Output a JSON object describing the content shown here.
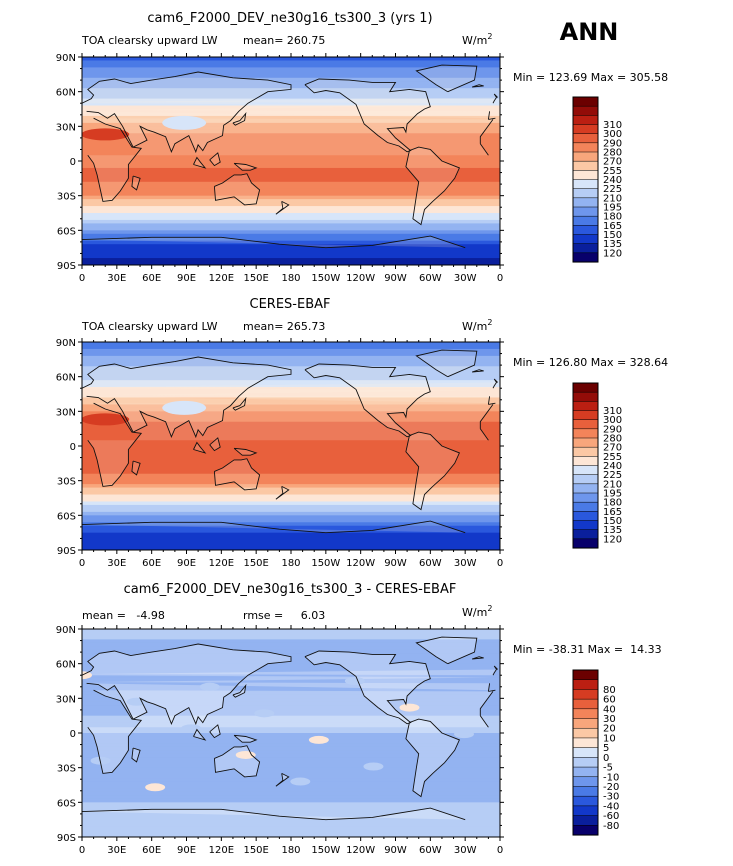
{
  "season": "ANN",
  "palettes": {
    "absolute": [
      "#08006b",
      "#0a1f9c",
      "#1238c9",
      "#2a58dd",
      "#4a7ae6",
      "#6e96ec",
      "#93b3f1",
      "#b6cdf5",
      "#d7e5f9",
      "#fde6d6",
      "#fbc8a5",
      "#f8a67c",
      "#f3845a",
      "#e8603c",
      "#d63c22",
      "#bb1f12",
      "#930c08",
      "#6b0000"
    ],
    "difference": [
      "#08006b",
      "#0a1f9c",
      "#1238c9",
      "#2a58dd",
      "#4a7ae6",
      "#6e96ec",
      "#93b3f1",
      "#b6cdf5",
      "#d7e5f9",
      "#fde6d6",
      "#fbc8a5",
      "#f8a67c",
      "#f3845a",
      "#e8603c",
      "#d63c22",
      "#bb1f12",
      "#6b0000"
    ]
  },
  "panels": [
    {
      "title": "cam6_F2000_DEV_ne30g16_ts300_3 (yrs 1)",
      "left_label": "TOA clearsky upward LW",
      "mean_text": "mean= 260.75",
      "rmse_text": "",
      "units_text": "W/m",
      "units_sup": "2",
      "minmax_text": "Min = 123.69 Max = 305.58"
    },
    {
      "title": "CERES-EBAF",
      "left_label": "TOA clearsky upward LW",
      "mean_text": "mean= 265.73",
      "rmse_text": "",
      "units_text": "W/m",
      "units_sup": "2",
      "minmax_text": "Min = 126.80 Max = 328.64"
    },
    {
      "title": "cam6_F2000_DEV_ne30g16_ts300_3 - CERES-EBAF",
      "left_label": "mean =   -4.98",
      "mean_text": "rmse =     6.03",
      "rmse_text": "",
      "units_text": "W/m",
      "units_sup": "2",
      "minmax_text": "Min = -38.31 Max =  14.33"
    }
  ],
  "chart_data": [
    {
      "type": "heatmap",
      "title": "cam6_F2000_DEV_ne30g16_ts300_3 (yrs 1)",
      "field": "TOA clearsky upward LW",
      "units": "W/m2",
      "mean": 260.75,
      "min": 123.69,
      "max": 305.58,
      "x_ticks": [
        "0",
        "30E",
        "60E",
        "90E",
        "120E",
        "150E",
        "180",
        "150W",
        "120W",
        "90W",
        "60W",
        "30W",
        "0"
      ],
      "y_ticks": [
        "90N",
        "60N",
        "30N",
        "0",
        "30S",
        "60S",
        "90S"
      ],
      "colorbar_levels": [
        310,
        300,
        290,
        280,
        270,
        255,
        240,
        225,
        210,
        195,
        180,
        165,
        150,
        135,
        120
      ],
      "zonal_mean_profile": [
        [
          90,
          160
        ],
        [
          75,
          190
        ],
        [
          60,
          215
        ],
        [
          45,
          245
        ],
        [
          30,
          275
        ],
        [
          15,
          290
        ],
        [
          0,
          288
        ],
        [
          -15,
          292
        ],
        [
          -30,
          280
        ],
        [
          -45,
          240
        ],
        [
          -60,
          195
        ],
        [
          -75,
          140
        ],
        [
          -90,
          130
        ]
      ]
    },
    {
      "type": "heatmap",
      "title": "CERES-EBAF",
      "field": "TOA clearsky upward LW",
      "units": "W/m2",
      "mean": 265.73,
      "min": 126.8,
      "max": 328.64,
      "x_ticks": [
        "0",
        "30E",
        "60E",
        "90E",
        "120E",
        "150E",
        "180",
        "150W",
        "120W",
        "90W",
        "60W",
        "30W",
        "0"
      ],
      "y_ticks": [
        "90N",
        "60N",
        "30N",
        "0",
        "30S",
        "60S",
        "90S"
      ],
      "colorbar_levels": [
        310,
        300,
        290,
        280,
        270,
        255,
        240,
        225,
        210,
        195,
        180,
        165,
        150,
        135,
        120
      ],
      "zonal_mean_profile": [
        [
          90,
          170
        ],
        [
          75,
          200
        ],
        [
          60,
          222
        ],
        [
          45,
          250
        ],
        [
          30,
          282
        ],
        [
          15,
          295
        ],
        [
          0,
          293
        ],
        [
          -15,
          298
        ],
        [
          -30,
          285
        ],
        [
          -45,
          248
        ],
        [
          -60,
          200
        ],
        [
          -75,
          145
        ],
        [
          -90,
          135
        ]
      ]
    },
    {
      "type": "heatmap",
      "title": "cam6_F2000_DEV_ne30g16_ts300_3 - CERES-EBAF",
      "units": "W/m2",
      "mean": -4.98,
      "rmse": 6.03,
      "min": -38.31,
      "max": 14.33,
      "x_ticks": [
        "0",
        "30E",
        "60E",
        "90E",
        "120E",
        "150E",
        "180",
        "150W",
        "120W",
        "90W",
        "60W",
        "30W",
        "0"
      ],
      "y_ticks": [
        "90N",
        "60N",
        "30N",
        "0",
        "30S",
        "60S",
        "90S"
      ],
      "colorbar_levels": [
        80,
        60,
        40,
        30,
        20,
        10,
        5,
        0,
        -5,
        -10,
        -20,
        -30,
        -40,
        -60,
        -80
      ],
      "zonal_mean_profile": [
        [
          90,
          -3
        ],
        [
          75,
          -6
        ],
        [
          60,
          -7
        ],
        [
          45,
          -5
        ],
        [
          30,
          -6
        ],
        [
          15,
          -5
        ],
        [
          0,
          -5
        ],
        [
          -15,
          -6
        ],
        [
          -30,
          -5
        ],
        [
          -45,
          -7
        ],
        [
          -60,
          -5
        ],
        [
          -75,
          -3
        ],
        [
          -90,
          -2
        ]
      ]
    }
  ]
}
